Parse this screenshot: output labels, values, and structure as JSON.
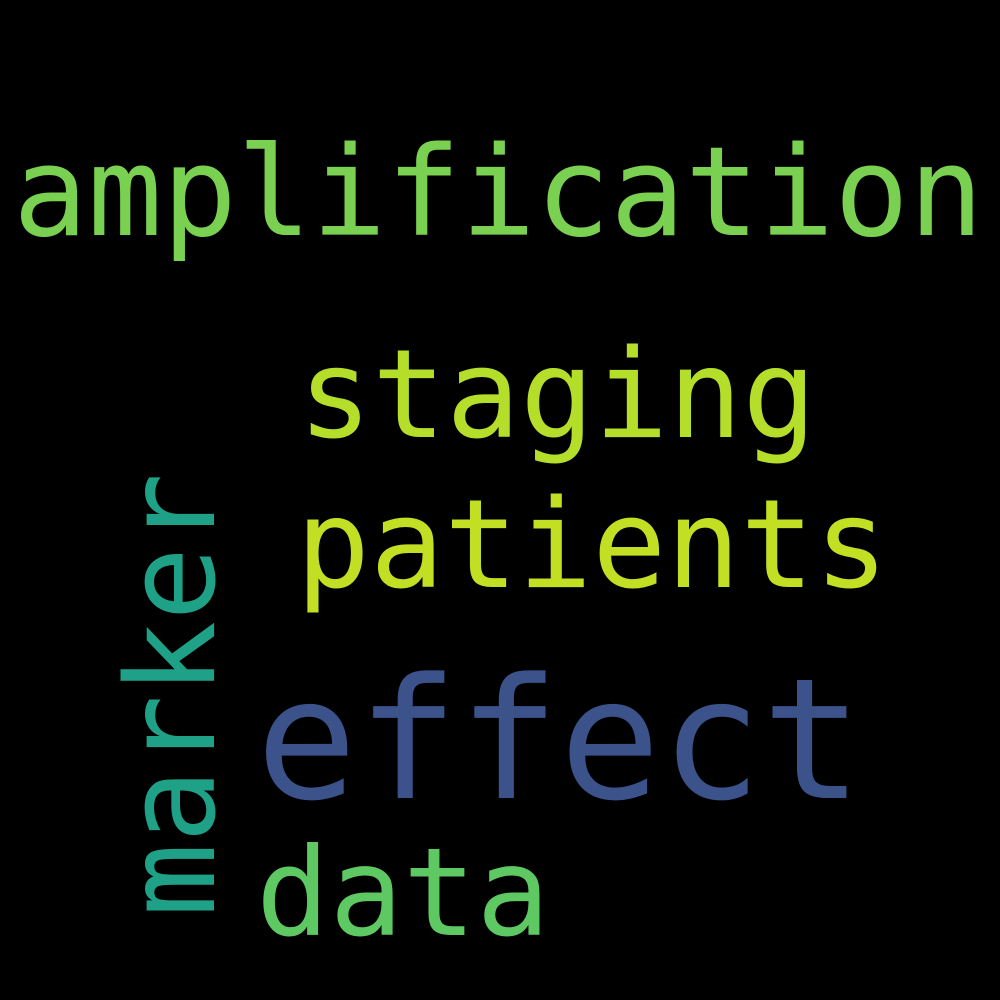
{
  "words": [
    {
      "text": "amplification",
      "color": "#7ad151"
    },
    {
      "text": "staging",
      "color": "#b5de2b"
    },
    {
      "text": "patients",
      "color": "#c2df23"
    },
    {
      "text": "marker",
      "color": "#1fa187"
    },
    {
      "text": "effect",
      "color": "#3b528b"
    },
    {
      "text": "data",
      "color": "#5ec962"
    }
  ]
}
